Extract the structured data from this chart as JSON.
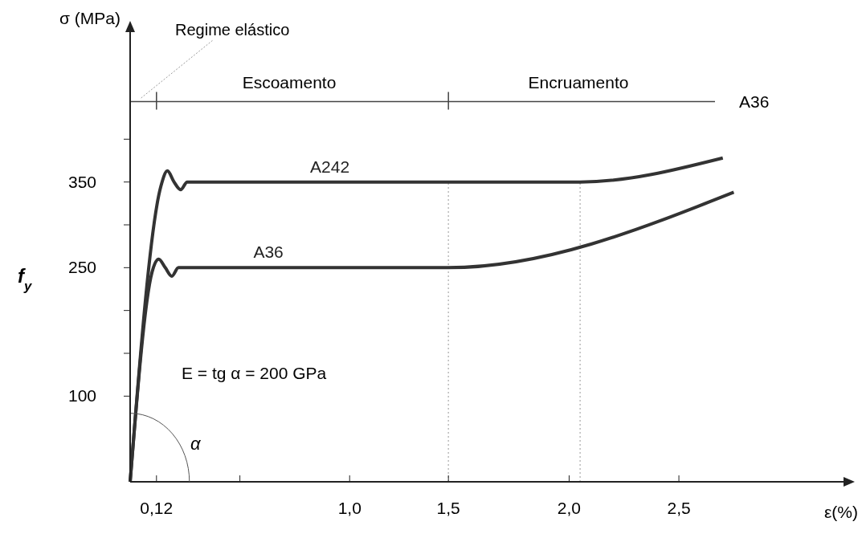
{
  "chart_data": {
    "type": "line",
    "xlabel": "ε(%)",
    "ylabel": "σ (MPa)",
    "xlim": [
      0,
      3.25
    ],
    "ylim": [
      0,
      525
    ],
    "xticks": [
      {
        "value": 0.12,
        "label": "0,12"
      },
      {
        "value": 0.5,
        "label": null
      },
      {
        "value": 1.0,
        "label": "1,0"
      },
      {
        "value": 1.45,
        "label": "1,5"
      },
      {
        "value": 2.0,
        "label": "2,0"
      },
      {
        "value": 2.5,
        "label": "2,5"
      }
    ],
    "yticks": [
      100,
      {
        "value": 150,
        "label": null
      },
      {
        "value": 200,
        "label": null
      },
      250,
      {
        "value": 300,
        "label": null
      },
      350,
      {
        "value": 400,
        "label": null
      }
    ],
    "series": [
      {
        "name": "A242",
        "color": "#333333",
        "x": [
          0,
          0.14,
          0.17,
          0.2,
          0.23,
          0.26,
          2.05,
          2.7
        ],
        "values": [
          0,
          345,
          363,
          350,
          341,
          350,
          350,
          378
        ]
      },
      {
        "name": "A36",
        "color": "#333333",
        "x": [
          0,
          0.1,
          0.13,
          0.16,
          0.19,
          0.22,
          1.45,
          2.75
        ],
        "values": [
          0,
          245,
          260,
          250,
          240,
          250,
          250,
          338
        ]
      }
    ],
    "ref_lines": [
      {
        "axis": "x",
        "value": 1.45,
        "label": null,
        "color": "#bbbbbb",
        "line_style": "dotted"
      },
      {
        "axis": "x",
        "value": 2.05,
        "label": null,
        "color": "#bbbbbb",
        "line_style": "dotted"
      },
      {
        "axis": "y",
        "value": 444,
        "label": "A36",
        "color": "#444444",
        "line_style": "solid"
      }
    ],
    "annotations": [
      "Regime elástico",
      "Escoamento",
      "Encruamento",
      "E = tg α = 200 GPa",
      "α",
      "f$_{y}$"
    ],
    "line_style": "solid"
  }
}
